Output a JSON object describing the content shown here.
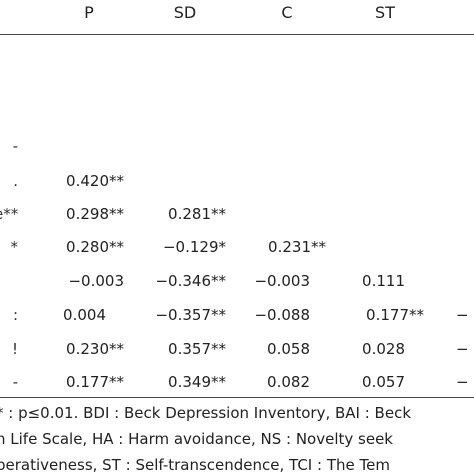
{
  "table": {
    "headers": [
      "P",
      "SD",
      "C",
      "ST"
    ],
    "row_labels": [
      "-",
      ".",
      "e**",
      "*",
      "",
      ":",
      "!",
      "-"
    ],
    "rows": [
      [
        "",
        "",
        "",
        ""
      ],
      [
        "0.420**",
        "",
        "",
        ""
      ],
      [
        "0.298**",
        "0.281**",
        "",
        ""
      ],
      [
        "0.280**",
        "−0.129*",
        "0.231**",
        ""
      ],
      [
        "−0.003",
        "−0.346**",
        "−0.003",
        "0.111"
      ],
      [
        "0.004",
        "−0.357**",
        "−0.088",
        "0.177**"
      ],
      [
        "0.230**",
        "0.357**",
        "0.058",
        "0.028"
      ],
      [
        "0.177**",
        "0.349**",
        "0.082",
        "0.057"
      ]
    ],
    "clipped_right": [
      "",
      "",
      "",
      "",
      "",
      "−",
      "−",
      "−"
    ]
  },
  "footnotes": [
    "* : p≤0.01. BDI : Beck Depression Inventory, BAI : Beck",
    "h Life Scale, HA : Harm avoidance, NS : Novelty seek",
    "perativeness, ST : Self-transcendence, TCI : The Tem"
  ]
}
